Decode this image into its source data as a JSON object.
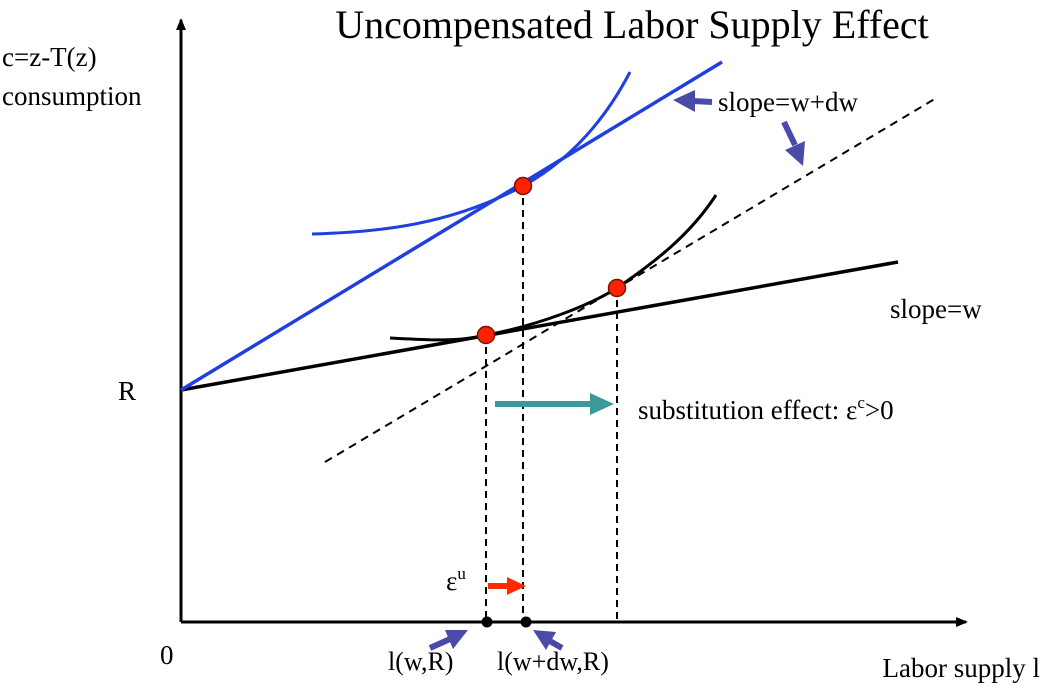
{
  "title": "Uncompensated Labor Supply Effect",
  "y_axis": {
    "label_line1": "c=z-T(z)",
    "label_line2": "consumption"
  },
  "x_axis": {
    "label": "Labor supply l",
    "origin": "0"
  },
  "intercept_label": "R",
  "annotations": {
    "slope_new": "slope=w+dw",
    "slope_old": "slope=w",
    "substitution_prefix": "substitution effect: ε",
    "substitution_sup": "c",
    "substitution_suffix": ">0",
    "uncomp_base": "ε",
    "uncomp_sup": "u"
  },
  "tick_labels": {
    "l_old": "l(w,R)",
    "l_new": "l(w+dw,R)"
  },
  "colors": {
    "axis": "#000000",
    "new_budget": "#1f3fe0",
    "old_budget": "#000000",
    "indifference_new": "#1f3fe0",
    "indifference_old": "#000000",
    "tangency_point": "#ff2200",
    "arrow_pointer": "#4a4aa8",
    "substitution_arrow": "#3a9a9a",
    "uncomp_arrow": "#ff2a00"
  }
}
